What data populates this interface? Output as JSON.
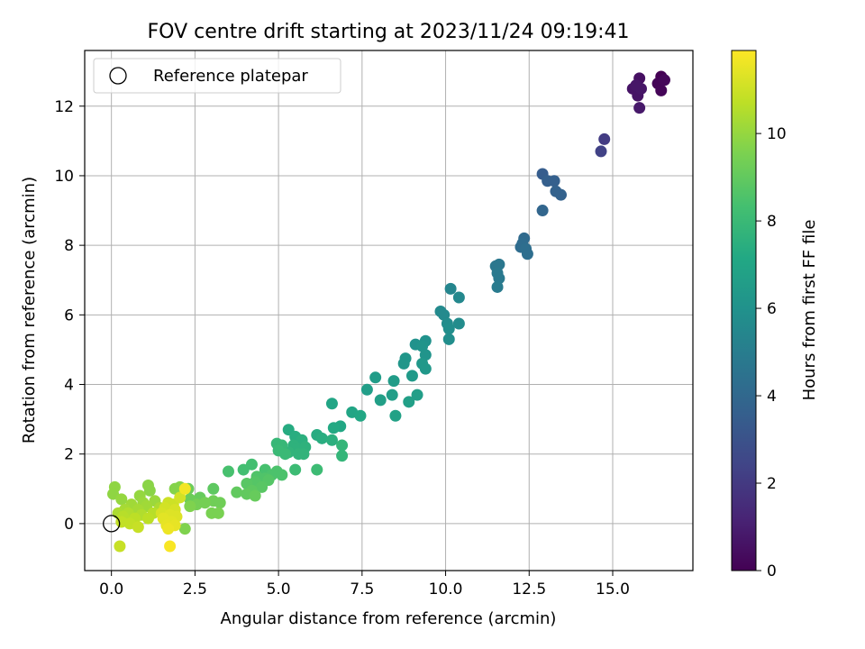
{
  "chart_data": {
    "type": "scatter",
    "title": "FOV centre drift starting at 2023/11/24 09:19:41",
    "xlabel": "Angular distance from reference (arcmin)",
    "ylabel": "Rotation from reference (arcmin)",
    "xlim": [
      -0.8,
      17.4
    ],
    "ylim": [
      -1.35,
      13.6
    ],
    "xticks": [
      0.0,
      2.5,
      5.0,
      7.5,
      10.0,
      12.5,
      15.0
    ],
    "xtick_labels": [
      "0.0",
      "2.5",
      "5.0",
      "7.5",
      "10.0",
      "12.5",
      "15.0"
    ],
    "yticks": [
      0,
      2,
      4,
      6,
      8,
      10,
      12
    ],
    "ytick_labels": [
      "0",
      "2",
      "4",
      "6",
      "8",
      "10",
      "12"
    ],
    "grid": true,
    "legend": {
      "placement": "upper-left",
      "entries": [
        {
          "label": "Reference platepar",
          "marker": "hollow-circle"
        }
      ]
    },
    "reference_point": {
      "x": 0.0,
      "y": 0.0
    },
    "colorbar": {
      "label": "Hours from first FF file",
      "range": [
        0,
        11.9
      ],
      "ticks": [
        0,
        2,
        4,
        6,
        8,
        10
      ],
      "tick_labels": [
        "0",
        "2",
        "4",
        "6",
        "8",
        "10"
      ],
      "colormap": "viridis"
    },
    "points": [
      {
        "x": 16.45,
        "y": 12.85,
        "c": 0.0
      },
      {
        "x": 16.35,
        "y": 12.65,
        "c": 0.1
      },
      {
        "x": 16.45,
        "y": 12.45,
        "c": 0.15
      },
      {
        "x": 16.55,
        "y": 12.75,
        "c": 0.2
      },
      {
        "x": 15.8,
        "y": 12.8,
        "c": 0.5
      },
      {
        "x": 15.6,
        "y": 12.5,
        "c": 0.6
      },
      {
        "x": 15.75,
        "y": 12.3,
        "c": 0.6
      },
      {
        "x": 15.85,
        "y": 12.5,
        "c": 0.7
      },
      {
        "x": 15.7,
        "y": 12.6,
        "c": 0.7
      },
      {
        "x": 15.8,
        "y": 11.95,
        "c": 0.8
      },
      {
        "x": 14.75,
        "y": 11.05,
        "c": 2.1
      },
      {
        "x": 14.65,
        "y": 10.7,
        "c": 2.3
      },
      {
        "x": 12.9,
        "y": 10.05,
        "c": 3.5
      },
      {
        "x": 13.05,
        "y": 9.85,
        "c": 3.6
      },
      {
        "x": 13.25,
        "y": 9.85,
        "c": 3.6
      },
      {
        "x": 13.3,
        "y": 9.55,
        "c": 3.7
      },
      {
        "x": 13.45,
        "y": 9.45,
        "c": 3.7
      },
      {
        "x": 12.9,
        "y": 9.0,
        "c": 3.9
      },
      {
        "x": 12.35,
        "y": 8.2,
        "c": 4.1
      },
      {
        "x": 12.3,
        "y": 8.05,
        "c": 4.2
      },
      {
        "x": 12.25,
        "y": 7.95,
        "c": 4.2
      },
      {
        "x": 12.4,
        "y": 7.9,
        "c": 4.3
      },
      {
        "x": 12.45,
        "y": 7.75,
        "c": 4.3
      },
      {
        "x": 11.5,
        "y": 7.4,
        "c": 4.7
      },
      {
        "x": 11.6,
        "y": 7.45,
        "c": 4.7
      },
      {
        "x": 11.55,
        "y": 7.2,
        "c": 4.8
      },
      {
        "x": 11.6,
        "y": 7.05,
        "c": 4.8
      },
      {
        "x": 11.55,
        "y": 6.8,
        "c": 4.9
      },
      {
        "x": 10.15,
        "y": 6.75,
        "c": 5.4
      },
      {
        "x": 10.4,
        "y": 6.5,
        "c": 5.5
      },
      {
        "x": 9.85,
        "y": 6.1,
        "c": 5.6
      },
      {
        "x": 9.95,
        "y": 6.0,
        "c": 5.6
      },
      {
        "x": 10.05,
        "y": 5.75,
        "c": 5.7
      },
      {
        "x": 10.4,
        "y": 5.75,
        "c": 5.7
      },
      {
        "x": 10.1,
        "y": 5.6,
        "c": 5.8
      },
      {
        "x": 10.1,
        "y": 5.3,
        "c": 5.8
      },
      {
        "x": 9.1,
        "y": 5.15,
        "c": 6.0
      },
      {
        "x": 9.4,
        "y": 5.25,
        "c": 6.0
      },
      {
        "x": 9.3,
        "y": 5.1,
        "c": 6.1
      },
      {
        "x": 9.4,
        "y": 4.85,
        "c": 6.1
      },
      {
        "x": 8.8,
        "y": 4.75,
        "c": 6.2
      },
      {
        "x": 8.75,
        "y": 4.6,
        "c": 6.2
      },
      {
        "x": 9.3,
        "y": 4.6,
        "c": 6.3
      },
      {
        "x": 9.4,
        "y": 4.45,
        "c": 6.3
      },
      {
        "x": 9.0,
        "y": 4.25,
        "c": 6.4
      },
      {
        "x": 7.9,
        "y": 4.2,
        "c": 6.5
      },
      {
        "x": 8.45,
        "y": 4.1,
        "c": 6.5
      },
      {
        "x": 7.65,
        "y": 3.85,
        "c": 6.6
      },
      {
        "x": 8.4,
        "y": 3.7,
        "c": 6.6
      },
      {
        "x": 9.15,
        "y": 3.7,
        "c": 6.6
      },
      {
        "x": 8.05,
        "y": 3.55,
        "c": 6.7
      },
      {
        "x": 8.9,
        "y": 3.5,
        "c": 6.7
      },
      {
        "x": 8.5,
        "y": 3.1,
        "c": 6.8
      },
      {
        "x": 6.6,
        "y": 3.45,
        "c": 7.0
      },
      {
        "x": 7.2,
        "y": 3.2,
        "c": 7.0
      },
      {
        "x": 7.45,
        "y": 3.1,
        "c": 7.1
      },
      {
        "x": 6.85,
        "y": 2.8,
        "c": 7.1
      },
      {
        "x": 6.65,
        "y": 2.75,
        "c": 7.2
      },
      {
        "x": 5.3,
        "y": 2.7,
        "c": 7.3
      },
      {
        "x": 6.15,
        "y": 2.55,
        "c": 7.3
      },
      {
        "x": 6.3,
        "y": 2.45,
        "c": 7.4
      },
      {
        "x": 5.5,
        "y": 2.5,
        "c": 7.4
      },
      {
        "x": 5.7,
        "y": 2.4,
        "c": 7.5
      },
      {
        "x": 6.6,
        "y": 2.4,
        "c": 7.5
      },
      {
        "x": 5.45,
        "y": 2.25,
        "c": 7.6
      },
      {
        "x": 5.55,
        "y": 2.15,
        "c": 7.6
      },
      {
        "x": 5.8,
        "y": 2.2,
        "c": 7.6
      },
      {
        "x": 5.3,
        "y": 2.05,
        "c": 7.7
      },
      {
        "x": 5.6,
        "y": 2.0,
        "c": 7.7
      },
      {
        "x": 5.75,
        "y": 2.0,
        "c": 7.7
      },
      {
        "x": 6.9,
        "y": 2.25,
        "c": 7.8
      },
      {
        "x": 6.9,
        "y": 1.95,
        "c": 7.8
      },
      {
        "x": 4.95,
        "y": 2.3,
        "c": 7.9
      },
      {
        "x": 5.1,
        "y": 2.25,
        "c": 7.9
      },
      {
        "x": 5.0,
        "y": 2.1,
        "c": 8.0
      },
      {
        "x": 5.2,
        "y": 2.0,
        "c": 8.0
      },
      {
        "x": 5.5,
        "y": 1.55,
        "c": 8.1
      },
      {
        "x": 6.15,
        "y": 1.55,
        "c": 8.1
      },
      {
        "x": 4.2,
        "y": 1.7,
        "c": 8.3
      },
      {
        "x": 3.95,
        "y": 1.55,
        "c": 8.3
      },
      {
        "x": 4.6,
        "y": 1.55,
        "c": 8.4
      },
      {
        "x": 3.5,
        "y": 1.5,
        "c": 8.4
      },
      {
        "x": 4.95,
        "y": 1.5,
        "c": 8.5
      },
      {
        "x": 4.8,
        "y": 1.4,
        "c": 8.5
      },
      {
        "x": 5.1,
        "y": 1.4,
        "c": 8.5
      },
      {
        "x": 4.35,
        "y": 1.35,
        "c": 8.6
      },
      {
        "x": 4.6,
        "y": 1.3,
        "c": 8.6
      },
      {
        "x": 4.3,
        "y": 1.2,
        "c": 8.7
      },
      {
        "x": 4.7,
        "y": 1.25,
        "c": 8.7
      },
      {
        "x": 4.05,
        "y": 1.15,
        "c": 8.8
      },
      {
        "x": 4.5,
        "y": 1.05,
        "c": 8.8
      },
      {
        "x": 3.05,
        "y": 1.0,
        "c": 8.9
      },
      {
        "x": 4.2,
        "y": 0.95,
        "c": 8.9
      },
      {
        "x": 3.75,
        "y": 0.9,
        "c": 9.0
      },
      {
        "x": 4.05,
        "y": 0.85,
        "c": 9.0
      },
      {
        "x": 4.3,
        "y": 0.8,
        "c": 9.1
      },
      {
        "x": 2.65,
        "y": 0.75,
        "c": 9.1
      },
      {
        "x": 2.3,
        "y": 1.0,
        "c": 9.2
      },
      {
        "x": 2.35,
        "y": 0.7,
        "c": 9.2
      },
      {
        "x": 3.05,
        "y": 0.65,
        "c": 9.3
      },
      {
        "x": 3.25,
        "y": 0.6,
        "c": 9.3
      },
      {
        "x": 2.55,
        "y": 0.55,
        "c": 9.4
      },
      {
        "x": 2.8,
        "y": 0.6,
        "c": 9.4
      },
      {
        "x": 3.0,
        "y": 0.3,
        "c": 9.5
      },
      {
        "x": 3.2,
        "y": 0.3,
        "c": 9.5
      },
      {
        "x": 2.35,
        "y": 0.5,
        "c": 9.6
      },
      {
        "x": 2.2,
        "y": -0.15,
        "c": 9.6
      },
      {
        "x": 1.9,
        "y": 1.0,
        "c": 9.7
      },
      {
        "x": 2.05,
        "y": 1.05,
        "c": 9.7
      },
      {
        "x": 1.1,
        "y": 1.1,
        "c": 9.8
      },
      {
        "x": 1.15,
        "y": 0.95,
        "c": 9.8
      },
      {
        "x": 0.1,
        "y": 1.05,
        "c": 9.9
      },
      {
        "x": 0.05,
        "y": 0.85,
        "c": 9.9
      },
      {
        "x": 0.85,
        "y": 0.8,
        "c": 10.0
      },
      {
        "x": 0.3,
        "y": 0.7,
        "c": 10.0
      },
      {
        "x": 1.3,
        "y": 0.65,
        "c": 10.1
      },
      {
        "x": 0.95,
        "y": 0.6,
        "c": 10.1
      },
      {
        "x": 0.6,
        "y": 0.55,
        "c": 10.2
      },
      {
        "x": 1.05,
        "y": 0.5,
        "c": 10.2
      },
      {
        "x": 0.4,
        "y": 0.4,
        "c": 10.3
      },
      {
        "x": 0.8,
        "y": 0.4,
        "c": 10.3
      },
      {
        "x": 1.45,
        "y": 0.45,
        "c": 10.4
      },
      {
        "x": 0.2,
        "y": 0.3,
        "c": 10.4
      },
      {
        "x": 0.5,
        "y": 0.3,
        "c": 10.5
      },
      {
        "x": 0.9,
        "y": 0.25,
        "c": 10.5
      },
      {
        "x": 1.25,
        "y": 0.3,
        "c": 10.6
      },
      {
        "x": 0.35,
        "y": 0.2,
        "c": 10.6
      },
      {
        "x": 0.7,
        "y": 0.15,
        "c": 10.7
      },
      {
        "x": 1.1,
        "y": 0.15,
        "c": 10.7
      },
      {
        "x": 0.3,
        "y": 0.05,
        "c": 10.8
      },
      {
        "x": 0.55,
        "y": 0.0,
        "c": 10.8
      },
      {
        "x": 0.8,
        "y": -0.1,
        "c": 10.9
      },
      {
        "x": 0.25,
        "y": -0.65,
        "c": 10.9
      },
      {
        "x": 1.7,
        "y": 0.6,
        "c": 11.0
      },
      {
        "x": 1.85,
        "y": 0.55,
        "c": 11.0
      },
      {
        "x": 2.05,
        "y": 0.75,
        "c": 11.1
      },
      {
        "x": 1.6,
        "y": 0.45,
        "c": 11.1
      },
      {
        "x": 1.9,
        "y": 0.4,
        "c": 11.2
      },
      {
        "x": 1.5,
        "y": 0.3,
        "c": 11.2
      },
      {
        "x": 1.75,
        "y": 0.25,
        "c": 11.3
      },
      {
        "x": 1.95,
        "y": 0.2,
        "c": 11.3
      },
      {
        "x": 1.55,
        "y": 0.15,
        "c": 11.4
      },
      {
        "x": 1.8,
        "y": 0.05,
        "c": 11.4
      },
      {
        "x": 1.65,
        "y": -0.05,
        "c": 11.5
      },
      {
        "x": 1.9,
        "y": -0.05,
        "c": 11.5
      },
      {
        "x": 1.7,
        "y": -0.15,
        "c": 11.6
      },
      {
        "x": 2.2,
        "y": 1.0,
        "c": 11.7
      },
      {
        "x": 1.75,
        "y": -0.65,
        "c": 11.8
      }
    ]
  }
}
